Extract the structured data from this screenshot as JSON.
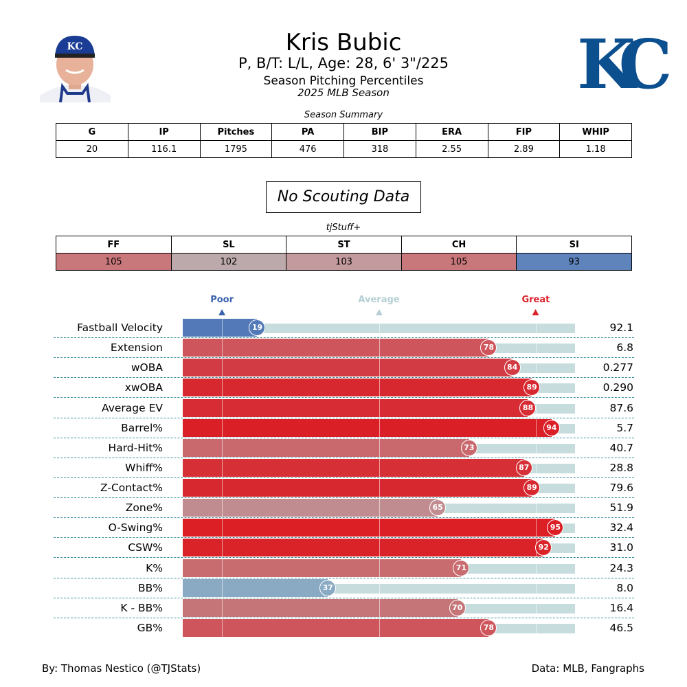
{
  "header": {
    "name": "Kris Bubic",
    "info": "P, B/T: L/L, Age: 28, 6' 3\"/225",
    "subtitle": "Season Pitching Percentiles",
    "season": "2025 MLB Season",
    "logo_text": "KC",
    "cap_text": "KC"
  },
  "summary": {
    "caption": "Season Summary",
    "headers": [
      "G",
      "IP",
      "Pitches",
      "PA",
      "BIP",
      "ERA",
      "FIP",
      "WHIP"
    ],
    "values": [
      "20",
      "116.1",
      "1795",
      "476",
      "318",
      "2.55",
      "2.89",
      "1.18"
    ]
  },
  "scouting": "No Scouting Data",
  "stuff": {
    "caption": "tjStuff+",
    "headers": [
      "FF",
      "SL",
      "ST",
      "CH",
      "SI"
    ],
    "values": [
      "105",
      "102",
      "103",
      "105",
      "93"
    ],
    "colors": [
      "#c8777a",
      "#bba9ab",
      "#c39a9d",
      "#c8777a",
      "#5f83bb"
    ]
  },
  "chart_data": {
    "type": "bar",
    "title": "Season Pitching Percentiles",
    "xlim": [
      0,
      100
    ],
    "markers": [
      {
        "label": "Poor",
        "at": 10,
        "color": "#3c63ae"
      },
      {
        "label": "Average",
        "at": 50,
        "color": "#b5cfd3"
      },
      {
        "label": "Great",
        "at": 90,
        "color": "#dc232b"
      }
    ],
    "rows": [
      {
        "stat": "Fastball Velocity",
        "pct": 19,
        "value": "92.1",
        "color": "#5379b8"
      },
      {
        "stat": "Extension",
        "pct": 78,
        "value": "6.8",
        "color": "#cf555c"
      },
      {
        "stat": "wOBA",
        "pct": 84,
        "value": "0.277",
        "color": "#d33b44"
      },
      {
        "stat": "xwOBA",
        "pct": 89,
        "value": "0.290",
        "color": "#d8282f"
      },
      {
        "stat": "Average EV",
        "pct": 88,
        "value": "87.6",
        "color": "#d72c33"
      },
      {
        "stat": "Barrel%",
        "pct": 94,
        "value": "5.7",
        "color": "#db1f26"
      },
      {
        "stat": "Hard-Hit%",
        "pct": 73,
        "value": "40.7",
        "color": "#c9696e"
      },
      {
        "stat": "Whiff%",
        "pct": 87,
        "value": "28.8",
        "color": "#d63036"
      },
      {
        "stat": "Z-Contact%",
        "pct": 89,
        "value": "79.6",
        "color": "#d8282f"
      },
      {
        "stat": "Zone%",
        "pct": 65,
        "value": "51.9",
        "color": "#c18c8f"
      },
      {
        "stat": "O-Swing%",
        "pct": 95,
        "value": "32.4",
        "color": "#dc1e25"
      },
      {
        "stat": "CSW%",
        "pct": 92,
        "value": "31.0",
        "color": "#da2329"
      },
      {
        "stat": "K%",
        "pct": 71,
        "value": "24.3",
        "color": "#c86c70"
      },
      {
        "stat": "BB%",
        "pct": 37,
        "value": "8.0",
        "color": "#8aaac4"
      },
      {
        "stat": "K - BB%",
        "pct": 70,
        "value": "16.4",
        "color": "#c57577"
      },
      {
        "stat": "GB%",
        "pct": 78,
        "value": "46.5",
        "color": "#cf555c"
      }
    ]
  },
  "footer": {
    "left": "By: Thomas Nestico (@TJStats)",
    "right": "Data: MLB, Fangraphs"
  }
}
